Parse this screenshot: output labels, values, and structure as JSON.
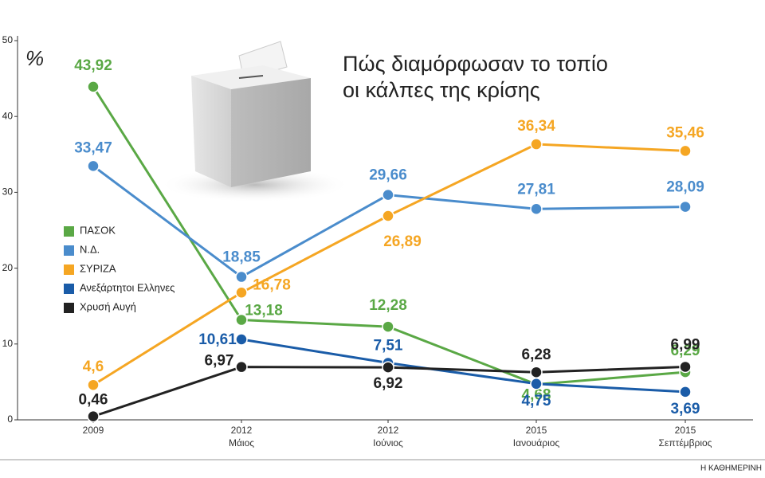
{
  "chart_data": {
    "type": "line",
    "title": [
      "Πώς διαμόρφωσαν το τοπίο",
      "οι κάλπες της κρίσης"
    ],
    "unit_label": "%",
    "source": "Η ΚΑΘΗΜΕΡΙΝΗ",
    "categories": [
      [
        "2009"
      ],
      [
        "2012",
        "Μάιος"
      ],
      [
        "2012",
        "Ιούνιος"
      ],
      [
        "2015",
        "Ιανουάριος"
      ],
      [
        "2015",
        "Σεπτέμβριος"
      ]
    ],
    "ylim": [
      0,
      50
    ],
    "yticks": [
      0,
      10,
      20,
      30,
      40,
      50
    ],
    "series": [
      {
        "name": "ΠΑΣΟΚ",
        "color": "#5aa845",
        "values": [
          43.92,
          13.18,
          12.28,
          4.68,
          6.29
        ],
        "value_labels": [
          "43,92",
          "13,18",
          "12,28",
          "4,68",
          "6,29"
        ]
      },
      {
        "name": "Ν.Δ.",
        "color": "#4a8ccc",
        "values": [
          33.47,
          18.85,
          29.66,
          27.81,
          28.09
        ],
        "value_labels": [
          "33,47",
          "18,85",
          "29,66",
          "27,81",
          "28,09"
        ]
      },
      {
        "name": "ΣΥΡΙΖΑ",
        "color": "#f5a623",
        "values": [
          4.6,
          16.78,
          26.89,
          36.34,
          35.46
        ],
        "value_labels": [
          "4,6",
          "16,78",
          "26,89",
          "36,34",
          "35,46"
        ]
      },
      {
        "name": "Ανεξάρτητοι Ελληνες",
        "color": "#1a5ca8",
        "values": [
          null,
          10.61,
          7.51,
          4.75,
          3.69
        ],
        "value_labels": [
          null,
          "10,61",
          "7,51",
          "4,75",
          "3,69"
        ]
      },
      {
        "name": "Χρυσή Αυγή",
        "color": "#222222",
        "values": [
          0.46,
          6.97,
          6.92,
          6.28,
          6.99
        ],
        "value_labels": [
          "0,46",
          "6,97",
          "6,92",
          "6,28",
          "6,99"
        ]
      }
    ]
  }
}
